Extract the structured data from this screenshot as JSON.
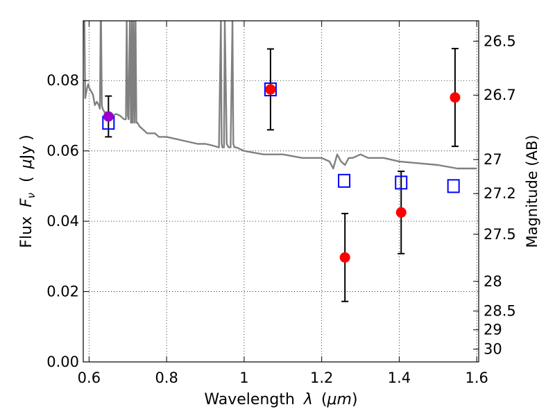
{
  "chart_data": {
    "type": "scatter",
    "xlabel": "Wavelength",
    "xlabel_symbol": "λ",
    "xlabel_unit_open": "(",
    "xlabel_unit": "μm",
    "xlabel_unit_close": ")",
    "ylabel": "Flux",
    "ylabel_symbol_main": "F",
    "ylabel_symbol_sub": "ν",
    "ylabel_unit_open": "(",
    "ylabel_unit_mu": "μ",
    "ylabel_unit_rest": "Jy )",
    "ylabel_right": "Magnitude (AB)",
    "xlim": [
      0.585,
      1.605
    ],
    "ylim": [
      0.0,
      0.097
    ],
    "xticks": [
      0.6,
      0.8,
      1.0,
      1.2,
      1.4,
      1.6
    ],
    "xtick_labels": [
      "0.6",
      "0.8",
      "1",
      "1.2",
      "1.4",
      "1.6"
    ],
    "yticks": [
      0.0,
      0.02,
      0.04,
      0.06,
      0.08
    ],
    "ytick_labels": [
      "0.00",
      "0.02",
      "0.04",
      "0.06",
      "0.08"
    ],
    "right_ticks": [
      26.5,
      26.7,
      27,
      27.2,
      27.5,
      28,
      28.5,
      29,
      30
    ],
    "right_tick_labels": [
      "26.5",
      "26.7",
      "27",
      "27.2",
      "27.5",
      "28",
      "28.5",
      "29",
      "30"
    ],
    "grid": true,
    "series": [
      {
        "kind": "line",
        "color": "#808080",
        "x": [
          0.588,
          0.59,
          0.595,
          0.598,
          0.6,
          0.605,
          0.61,
          0.615,
          0.62,
          0.625,
          0.628,
          0.63,
          0.631,
          0.633,
          0.635,
          0.64,
          0.65,
          0.66,
          0.67,
          0.68,
          0.69,
          0.695,
          0.697,
          0.7,
          0.702,
          0.705,
          0.708,
          0.71,
          0.712,
          0.715,
          0.717,
          0.72,
          0.722,
          0.725,
          0.73,
          0.74,
          0.75,
          0.76,
          0.77,
          0.78,
          0.8,
          0.82,
          0.84,
          0.86,
          0.88,
          0.9,
          0.92,
          0.935,
          0.94,
          0.942,
          0.944,
          0.946,
          0.948,
          0.95,
          0.955,
          0.96,
          0.965,
          0.97,
          0.972,
          0.975,
          0.98,
          1.0,
          1.05,
          1.1,
          1.15,
          1.2,
          1.22,
          1.23,
          1.24,
          1.25,
          1.26,
          1.27,
          1.28,
          1.3,
          1.32,
          1.34,
          1.36,
          1.4,
          1.45,
          1.5,
          1.55,
          1.6
        ],
        "y": [
          0.097,
          0.075,
          0.078,
          0.079,
          0.078,
          0.077,
          0.076,
          0.073,
          0.074,
          0.073,
          0.072,
          0.097,
          0.097,
          0.073,
          0.072,
          0.071,
          0.071,
          0.07,
          0.0705,
          0.07,
          0.069,
          0.069,
          0.097,
          0.07,
          0.069,
          0.097,
          0.068,
          0.097,
          0.068,
          0.097,
          0.068,
          0.097,
          0.068,
          0.068,
          0.067,
          0.066,
          0.065,
          0.065,
          0.065,
          0.064,
          0.064,
          0.0635,
          0.063,
          0.0625,
          0.062,
          0.062,
          0.0615,
          0.061,
          0.097,
          0.062,
          0.061,
          0.061,
          0.061,
          0.097,
          0.062,
          0.061,
          0.061,
          0.097,
          0.062,
          0.061,
          0.061,
          0.06,
          0.059,
          0.059,
          0.058,
          0.058,
          0.057,
          0.055,
          0.059,
          0.057,
          0.056,
          0.058,
          0.058,
          0.059,
          0.058,
          0.058,
          0.058,
          0.057,
          0.0565,
          0.056,
          0.055,
          0.055
        ]
      },
      {
        "kind": "markers",
        "marker": "open-square",
        "color": "#0000ff",
        "x": [
          0.65,
          1.068,
          1.258,
          1.405,
          1.54
        ],
        "y": [
          0.068,
          0.0775,
          0.0515,
          0.051,
          0.05
        ]
      },
      {
        "kind": "markers",
        "marker": "filled-circle",
        "color": "#ff0000",
        "x": [
          1.068,
          1.26,
          1.405,
          1.544
        ],
        "y": [
          0.0775,
          0.0297,
          0.0425,
          0.0752
        ],
        "yerr": [
          0.0115,
          0.0125,
          0.0117,
          0.0139
        ]
      },
      {
        "kind": "markers",
        "marker": "filled-circle",
        "color": "#9900cc",
        "x": [
          0.65
        ],
        "y": [
          0.0698
        ],
        "yerr": [
          0.0058
        ]
      }
    ]
  }
}
